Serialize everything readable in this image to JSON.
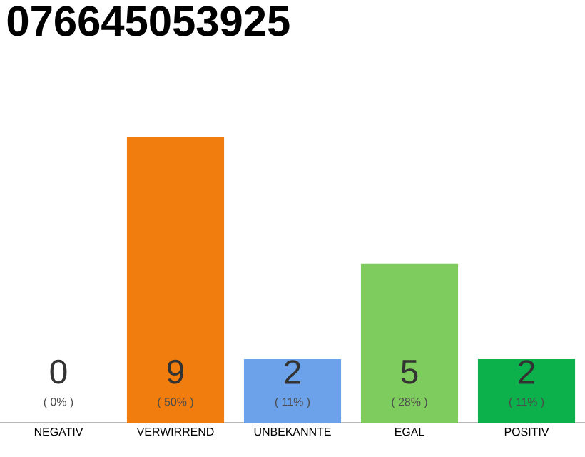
{
  "chart_data": {
    "type": "bar",
    "title": "076645053925",
    "categories": [
      "NEGATIV",
      "VERWIRREND",
      "UNBEKANNTE",
      "EGAL",
      "POSITIV"
    ],
    "values": [
      0,
      9,
      2,
      5,
      2
    ],
    "colors": [
      "#9e9e9e",
      "#f07d0e",
      "#6ba2ea",
      "#7ecb5e",
      "#0db14b"
    ],
    "value_labels": [
      "0",
      "9",
      "2",
      "5",
      "2"
    ],
    "annotations": [
      "( 0% )",
      "( 50% )",
      "( 11% )",
      "( 28% )",
      "( 11% )"
    ]
  }
}
